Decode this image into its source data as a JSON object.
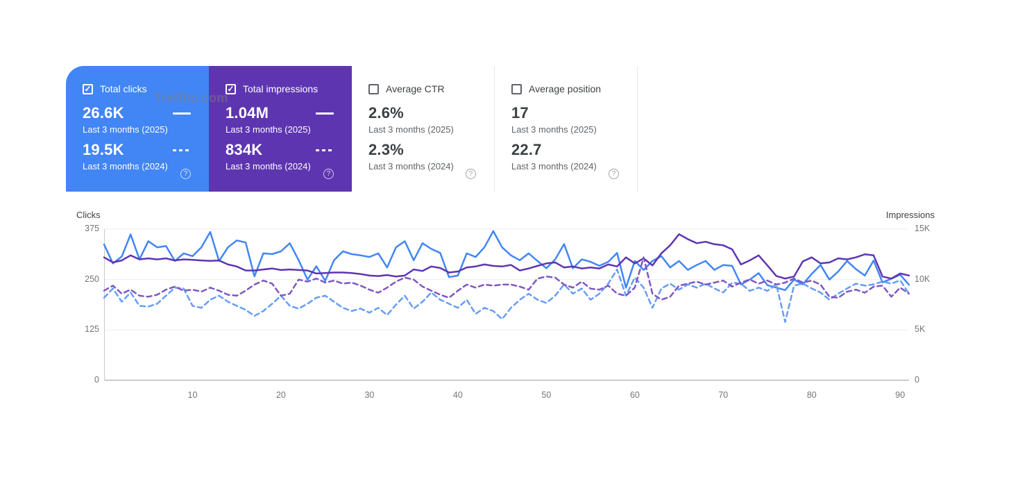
{
  "watermark": "Traffilo.com",
  "colors": {
    "clicks_current": "#4285f4",
    "clicks_previous": "#669df6",
    "impressions_current": "#5e35b1",
    "impressions_previous": "#7e57c2",
    "grid": "#eceef0",
    "axis_bottom": "#9aa0a6",
    "axis_left": "#c6c9cc"
  },
  "cards": [
    {
      "label": "Total clicks",
      "checked": true,
      "current": {
        "value": "26.6K",
        "period": "Last 3 months (2025)"
      },
      "previous": {
        "value": "19.5K",
        "period": "Last 3 months (2024)"
      }
    },
    {
      "label": "Total impressions",
      "checked": true,
      "current": {
        "value": "1.04M",
        "period": "Last 3 months (2025)"
      },
      "previous": {
        "value": "834K",
        "period": "Last 3 months (2024)"
      }
    },
    {
      "label": "Average CTR",
      "checked": false,
      "current": {
        "value": "2.6%",
        "period": "Last 3 months (2025)"
      },
      "previous": {
        "value": "2.3%",
        "period": "Last 3 months (2024)"
      }
    },
    {
      "label": "Average position",
      "checked": false,
      "current": {
        "value": "17",
        "period": "Last 3 months (2025)"
      },
      "previous": {
        "value": "22.7",
        "period": "Last 3 months (2024)"
      }
    }
  ],
  "chart_data": {
    "type": "line",
    "x_axis": {
      "ticks": [
        10,
        20,
        30,
        40,
        50,
        60,
        70,
        80,
        90
      ],
      "days": 92
    },
    "left_axis": {
      "title": "Clicks",
      "ticks": [
        "0",
        "125",
        "250",
        "375"
      ],
      "tick_values": [
        0,
        125,
        250,
        375
      ],
      "max": 375
    },
    "right_axis": {
      "title": "Impressions",
      "ticks": [
        "0",
        "5K",
        "10K",
        "15K"
      ],
      "tick_values": [
        0,
        5,
        10,
        15
      ],
      "max": 15
    },
    "grid": true,
    "series": [
      {
        "name": "Total clicks — Last 3 months (2025)",
        "axis": "left",
        "style": "solid",
        "color": "#4285f4",
        "values": [
          337,
          290,
          307,
          362,
          300,
          345,
          330,
          333,
          296,
          315,
          308,
          330,
          368,
          296,
          330,
          347,
          342,
          258,
          315,
          313,
          320,
          340,
          298,
          250,
          283,
          247,
          298,
          320,
          313,
          310,
          306,
          315,
          280,
          330,
          345,
          298,
          340,
          326,
          316,
          256,
          260,
          315,
          306,
          330,
          370,
          330,
          310,
          298,
          315,
          296,
          278,
          300,
          338,
          278,
          300,
          294,
          284,
          294,
          316,
          230,
          296,
          274,
          296,
          308,
          280,
          296,
          274,
          286,
          296,
          274,
          286,
          284,
          238,
          250,
          266,
          236,
          230,
          224,
          250,
          238,
          264,
          286,
          250,
          270,
          296,
          276,
          260,
          297,
          243,
          252,
          262,
          237
        ]
      },
      {
        "name": "Total clicks — Last 3 months (2024)",
        "axis": "left",
        "style": "dashed",
        "color": "#669df6",
        "values": [
          205,
          228,
          195,
          218,
          185,
          183,
          190,
          210,
          230,
          228,
          185,
          180,
          200,
          210,
          195,
          185,
          175,
          160,
          172,
          190,
          210,
          185,
          178,
          190,
          205,
          210,
          195,
          180,
          172,
          178,
          168,
          180,
          162,
          188,
          210,
          178,
          195,
          218,
          200,
          190,
          180,
          200,
          165,
          180,
          172,
          152,
          180,
          200,
          215,
          200,
          192,
          210,
          238,
          215,
          228,
          200,
          215,
          240,
          275,
          210,
          255,
          230,
          180,
          228,
          240,
          225,
          238,
          230,
          240,
          228,
          218,
          242,
          240,
          222,
          230,
          222,
          238,
          145,
          235,
          240,
          228,
          218,
          200,
          215,
          228,
          240,
          235,
          238,
          245,
          240,
          248,
          215
        ]
      },
      {
        "name": "Total impressions — Last 3 months (2025)",
        "axis": "right",
        "style": "solid",
        "color": "#5e35b1",
        "unit": "K",
        "values": [
          12.2,
          11.7,
          11.9,
          12.4,
          12.0,
          12.1,
          12.0,
          12.1,
          11.9,
          12.0,
          11.95,
          11.9,
          11.85,
          11.9,
          11.5,
          11.3,
          10.9,
          10.9,
          11.0,
          11.1,
          10.95,
          11.0,
          10.95,
          10.9,
          10.6,
          10.65,
          10.7,
          10.7,
          10.65,
          10.55,
          10.4,
          10.35,
          10.45,
          10.3,
          10.4,
          11.0,
          10.85,
          11.3,
          11.15,
          10.7,
          10.8,
          11.2,
          11.3,
          11.5,
          11.35,
          11.3,
          11.45,
          10.9,
          11.1,
          11.35,
          11.6,
          11.7,
          11.2,
          11.3,
          11.1,
          11.2,
          11.1,
          11.5,
          11.3,
          12.2,
          11.6,
          12.1,
          11.4,
          12.6,
          13.4,
          14.5,
          14.0,
          13.6,
          13.75,
          13.5,
          13.4,
          13.0,
          11.5,
          11.9,
          12.4,
          11.4,
          10.35,
          10.1,
          10.3,
          11.8,
          12.2,
          11.6,
          11.7,
          12.1,
          12.0,
          12.2,
          12.5,
          12.4,
          10.3,
          10.1,
          10.6,
          10.4
        ]
      },
      {
        "name": "Total impressions — Last 3 months (2024)",
        "axis": "right",
        "style": "dashed",
        "color": "#7e57c2",
        "unit": "K",
        "values": [
          8.9,
          9.4,
          8.6,
          9.0,
          8.4,
          8.3,
          8.5,
          9.0,
          9.3,
          8.9,
          9.0,
          8.8,
          9.2,
          8.9,
          8.5,
          8.4,
          8.9,
          9.5,
          9.9,
          9.6,
          8.4,
          8.6,
          10.0,
          9.8,
          10.1,
          9.7,
          9.9,
          9.6,
          9.7,
          9.4,
          9.0,
          8.7,
          9.2,
          9.8,
          10.2,
          10.0,
          9.3,
          8.9,
          8.5,
          8.2,
          8.9,
          9.5,
          9.2,
          9.5,
          9.4,
          9.5,
          9.5,
          9.3,
          9.0,
          10.1,
          10.3,
          10.2,
          9.5,
          9.2,
          9.8,
          9.1,
          9.0,
          9.4,
          8.6,
          8.4,
          9.2,
          12.2,
          8.6,
          8.0,
          8.3,
          9.4,
          9.6,
          9.8,
          9.5,
          9.7,
          9.9,
          9.3,
          9.7,
          10.0,
          9.6,
          9.9,
          9.5,
          9.7,
          10.1,
          9.7,
          9.9,
          9.5,
          8.3,
          8.2,
          8.8,
          9.0,
          8.7,
          9.3,
          9.4,
          8.3,
          9.2,
          8.6
        ]
      }
    ]
  }
}
